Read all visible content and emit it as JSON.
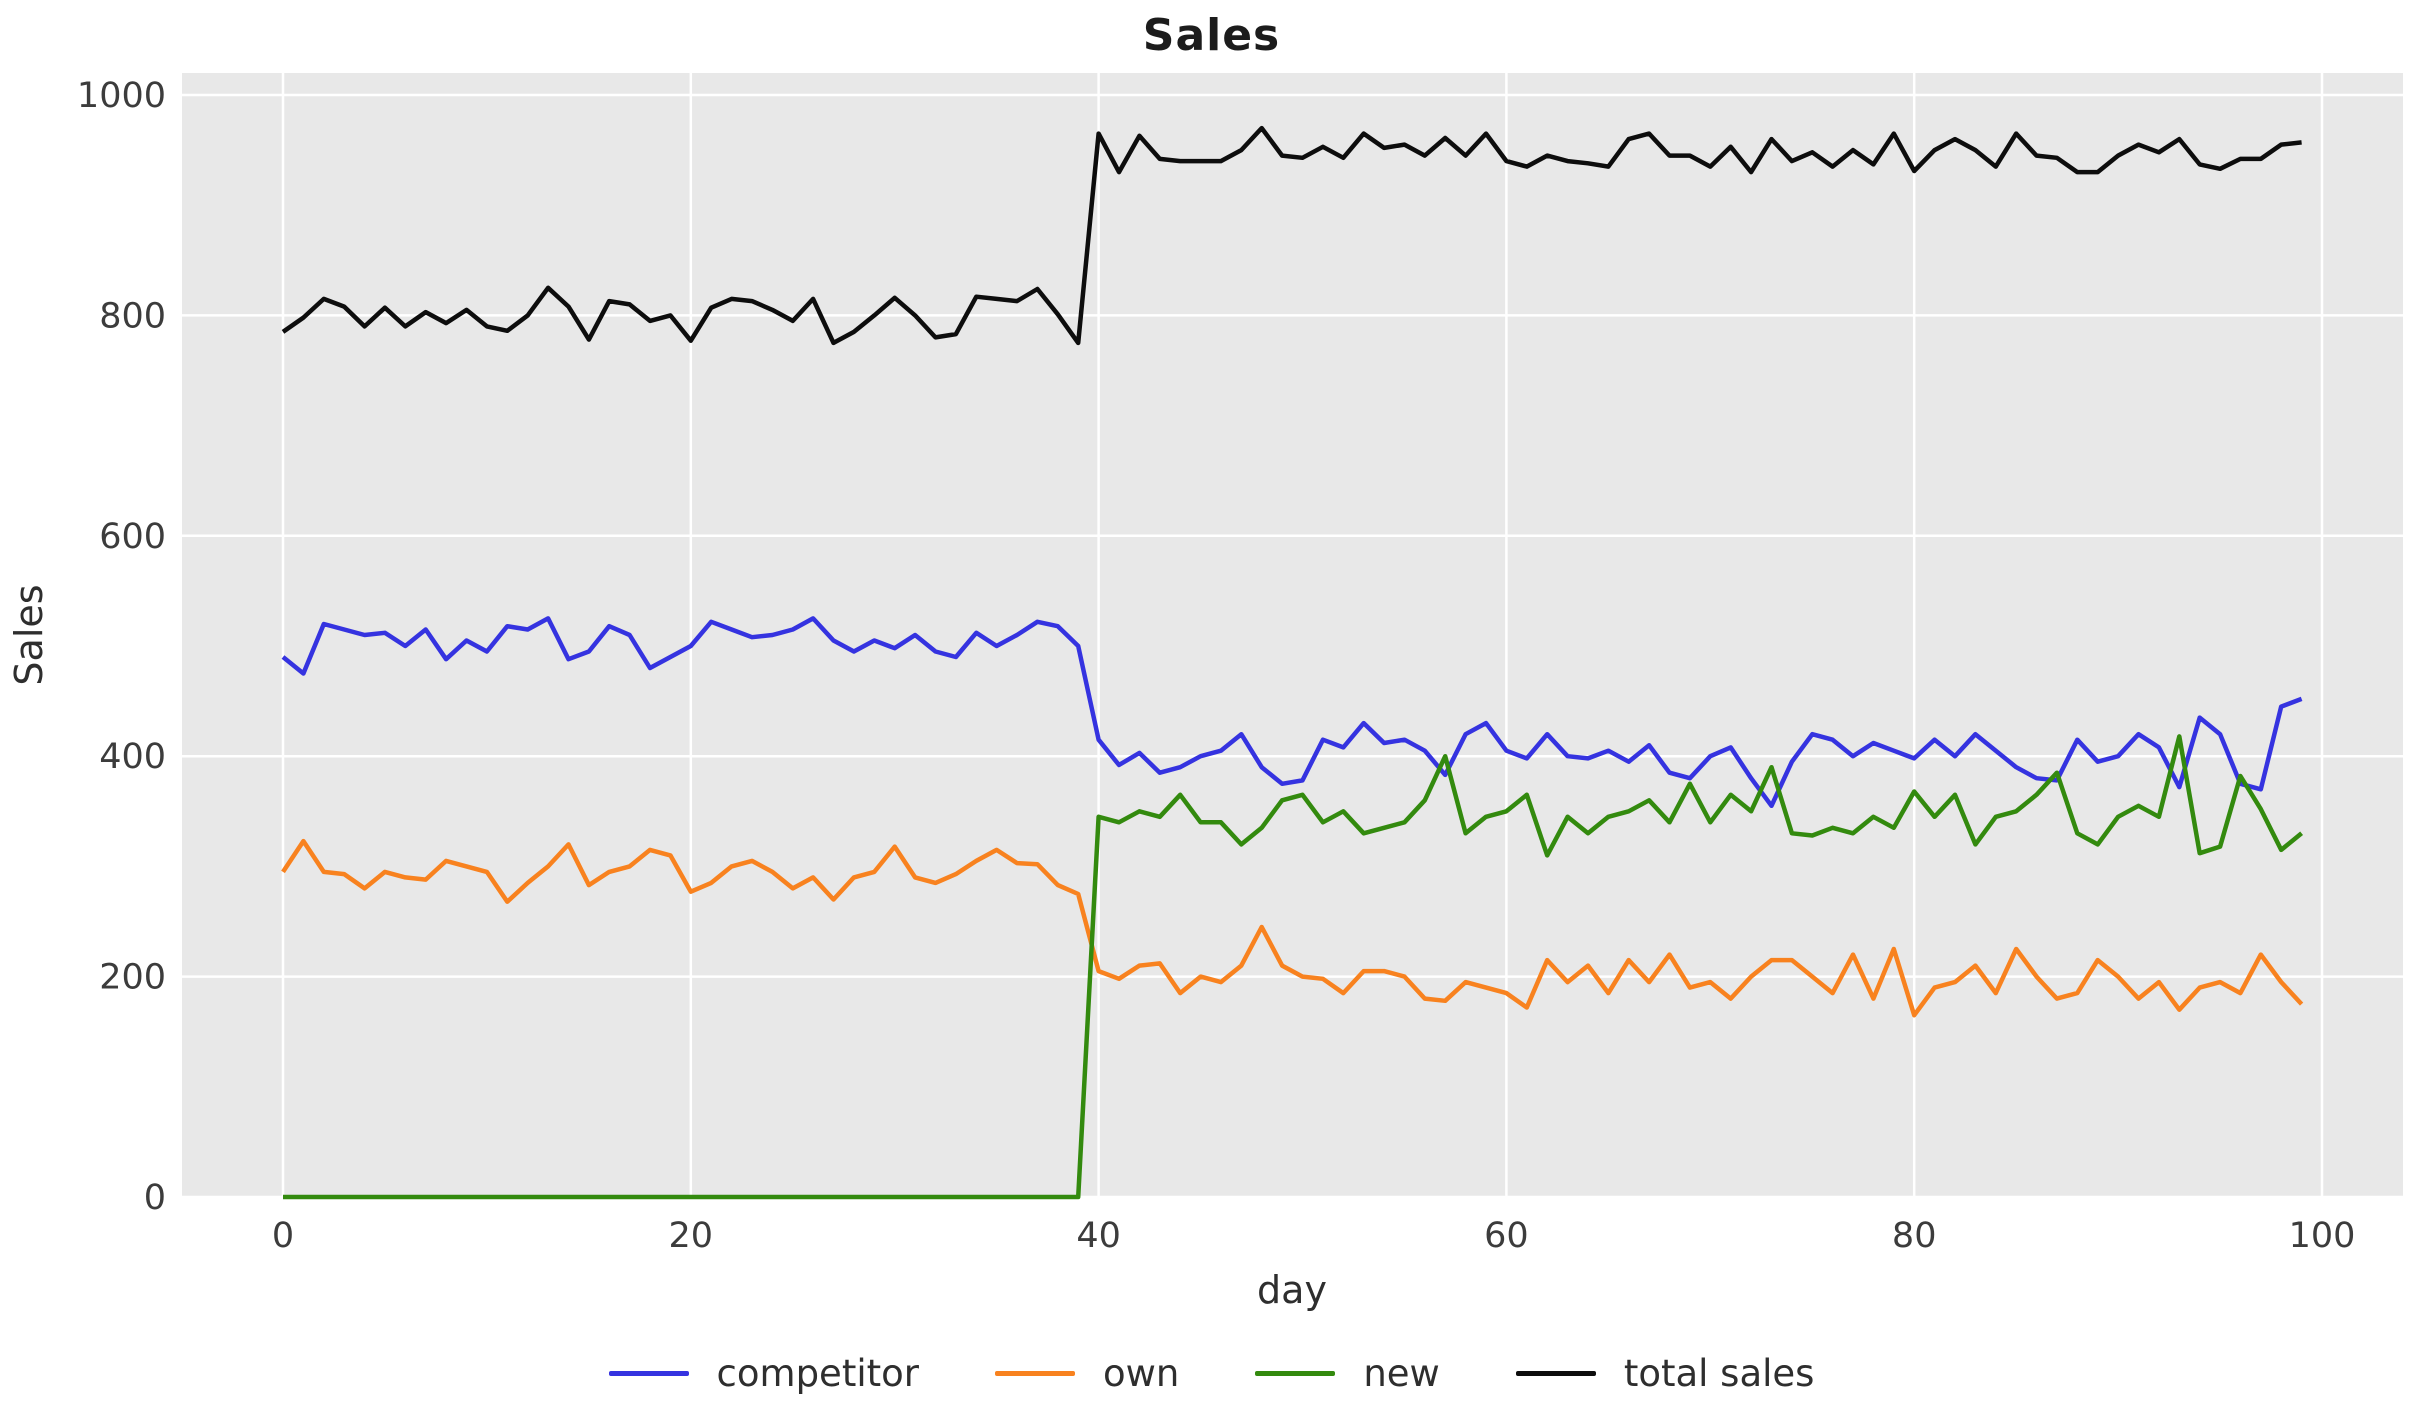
{
  "figure": {
    "title": "Sales",
    "xlabel": "day",
    "ylabel": "Sales",
    "plot_background": "#e8e8e8",
    "grid_color": "#ffffff",
    "tick_color": "#3c3c3c",
    "title_color": "#1c1c1c"
  },
  "axes": {
    "x_tick_labels": [
      "0",
      "20",
      "40",
      "60",
      "80",
      "100"
    ],
    "x_tick_values": [
      0,
      20,
      40,
      60,
      80,
      100
    ],
    "y_tick_labels": [
      "0",
      "200",
      "400",
      "600",
      "800",
      "1000"
    ],
    "y_tick_values": [
      0,
      200,
      400,
      600,
      800,
      1000
    ]
  },
  "legend": {
    "items": [
      {
        "label": "competitor",
        "color": "#3533e0"
      },
      {
        "label": "own",
        "color": "#f8821f"
      },
      {
        "label": "new",
        "color": "#338a0e"
      },
      {
        "label": "total sales",
        "color": "#0d0d0d"
      }
    ]
  },
  "chart_data": {
    "type": "line",
    "title": "Sales",
    "xlabel": "day",
    "ylabel": "Sales",
    "x_start": 0,
    "x_step": 1,
    "n_points": 100,
    "xlim": [
      -4.95,
      103.95
    ],
    "ylim": [
      0,
      1020
    ],
    "grid": true,
    "legend_position": "bottom-center",
    "series": [
      {
        "name": "competitor",
        "color": "#3533e0",
        "values": [
          490,
          475,
          520,
          515,
          510,
          512,
          500,
          515,
          488,
          505,
          495,
          518,
          515,
          525,
          488,
          495,
          518,
          510,
          480,
          490,
          500,
          522,
          515,
          508,
          510,
          515,
          525,
          505,
          495,
          505,
          498,
          510,
          495,
          490,
          512,
          500,
          510,
          522,
          518,
          500,
          415,
          392,
          403,
          385,
          390,
          400,
          405,
          420,
          390,
          375,
          378,
          415,
          408,
          430,
          412,
          415,
          405,
          383,
          420,
          430,
          405,
          398,
          420,
          400,
          398,
          405,
          395,
          410,
          385,
          380,
          400,
          408,
          380,
          355,
          395,
          420,
          415,
          400,
          412,
          405,
          398,
          415,
          400,
          420,
          405,
          390,
          380,
          378,
          415,
          395,
          400,
          420,
          408,
          372,
          435,
          420,
          375,
          370,
          445,
          452
        ]
      },
      {
        "name": "own",
        "color": "#f8821f",
        "values": [
          295,
          323,
          295,
          293,
          280,
          295,
          290,
          288,
          305,
          300,
          295,
          268,
          285,
          300,
          320,
          283,
          295,
          300,
          315,
          310,
          277,
          285,
          300,
          305,
          295,
          280,
          290,
          270,
          290,
          295,
          318,
          290,
          285,
          293,
          305,
          315,
          303,
          302,
          283,
          275,
          205,
          198,
          210,
          212,
          185,
          200,
          195,
          210,
          245,
          210,
          200,
          198,
          185,
          205,
          205,
          200,
          180,
          178,
          195,
          190,
          185,
          172,
          215,
          195,
          210,
          185,
          215,
          195,
          220,
          190,
          195,
          180,
          200,
          215,
          215,
          200,
          185,
          220,
          180,
          225,
          165,
          190,
          195,
          210,
          185,
          225,
          200,
          180,
          185,
          215,
          200,
          180,
          195,
          170,
          190,
          195,
          185,
          220,
          195,
          175
        ]
      },
      {
        "name": "new",
        "color": "#338a0e",
        "values": [
          0,
          0,
          0,
          0,
          0,
          0,
          0,
          0,
          0,
          0,
          0,
          0,
          0,
          0,
          0,
          0,
          0,
          0,
          0,
          0,
          0,
          0,
          0,
          0,
          0,
          0,
          0,
          0,
          0,
          0,
          0,
          0,
          0,
          0,
          0,
          0,
          0,
          0,
          0,
          0,
          345,
          340,
          350,
          345,
          365,
          340,
          340,
          320,
          335,
          360,
          365,
          340,
          350,
          330,
          335,
          340,
          360,
          400,
          330,
          345,
          350,
          365,
          310,
          345,
          330,
          345,
          350,
          360,
          340,
          375,
          340,
          365,
          350,
          390,
          330,
          328,
          335,
          330,
          345,
          335,
          368,
          345,
          365,
          320,
          345,
          350,
          365,
          385,
          330,
          320,
          345,
          355,
          345,
          418,
          312,
          318,
          382,
          352,
          315,
          330
        ]
      },
      {
        "name": "total sales",
        "color": "#0d0d0d",
        "values": [
          785,
          798,
          815,
          808,
          790,
          807,
          790,
          803,
          793,
          805,
          790,
          786,
          800,
          825,
          808,
          778,
          813,
          810,
          795,
          800,
          777,
          807,
          815,
          813,
          805,
          795,
          815,
          775,
          785,
          800,
          816,
          800,
          780,
          783,
          817,
          815,
          813,
          824,
          801,
          775,
          965,
          930,
          963,
          942,
          940,
          940,
          940,
          950,
          970,
          945,
          943,
          953,
          943,
          965,
          952,
          955,
          945,
          961,
          945,
          965,
          940,
          935,
          945,
          940,
          938,
          935,
          960,
          965,
          945,
          945,
          935,
          953,
          930,
          960,
          940,
          948,
          935,
          950,
          937,
          965,
          931,
          950,
          960,
          950,
          935,
          965,
          945,
          943,
          930,
          930,
          945,
          955,
          948,
          960,
          937,
          933,
          942,
          942,
          955,
          957
        ]
      }
    ]
  }
}
